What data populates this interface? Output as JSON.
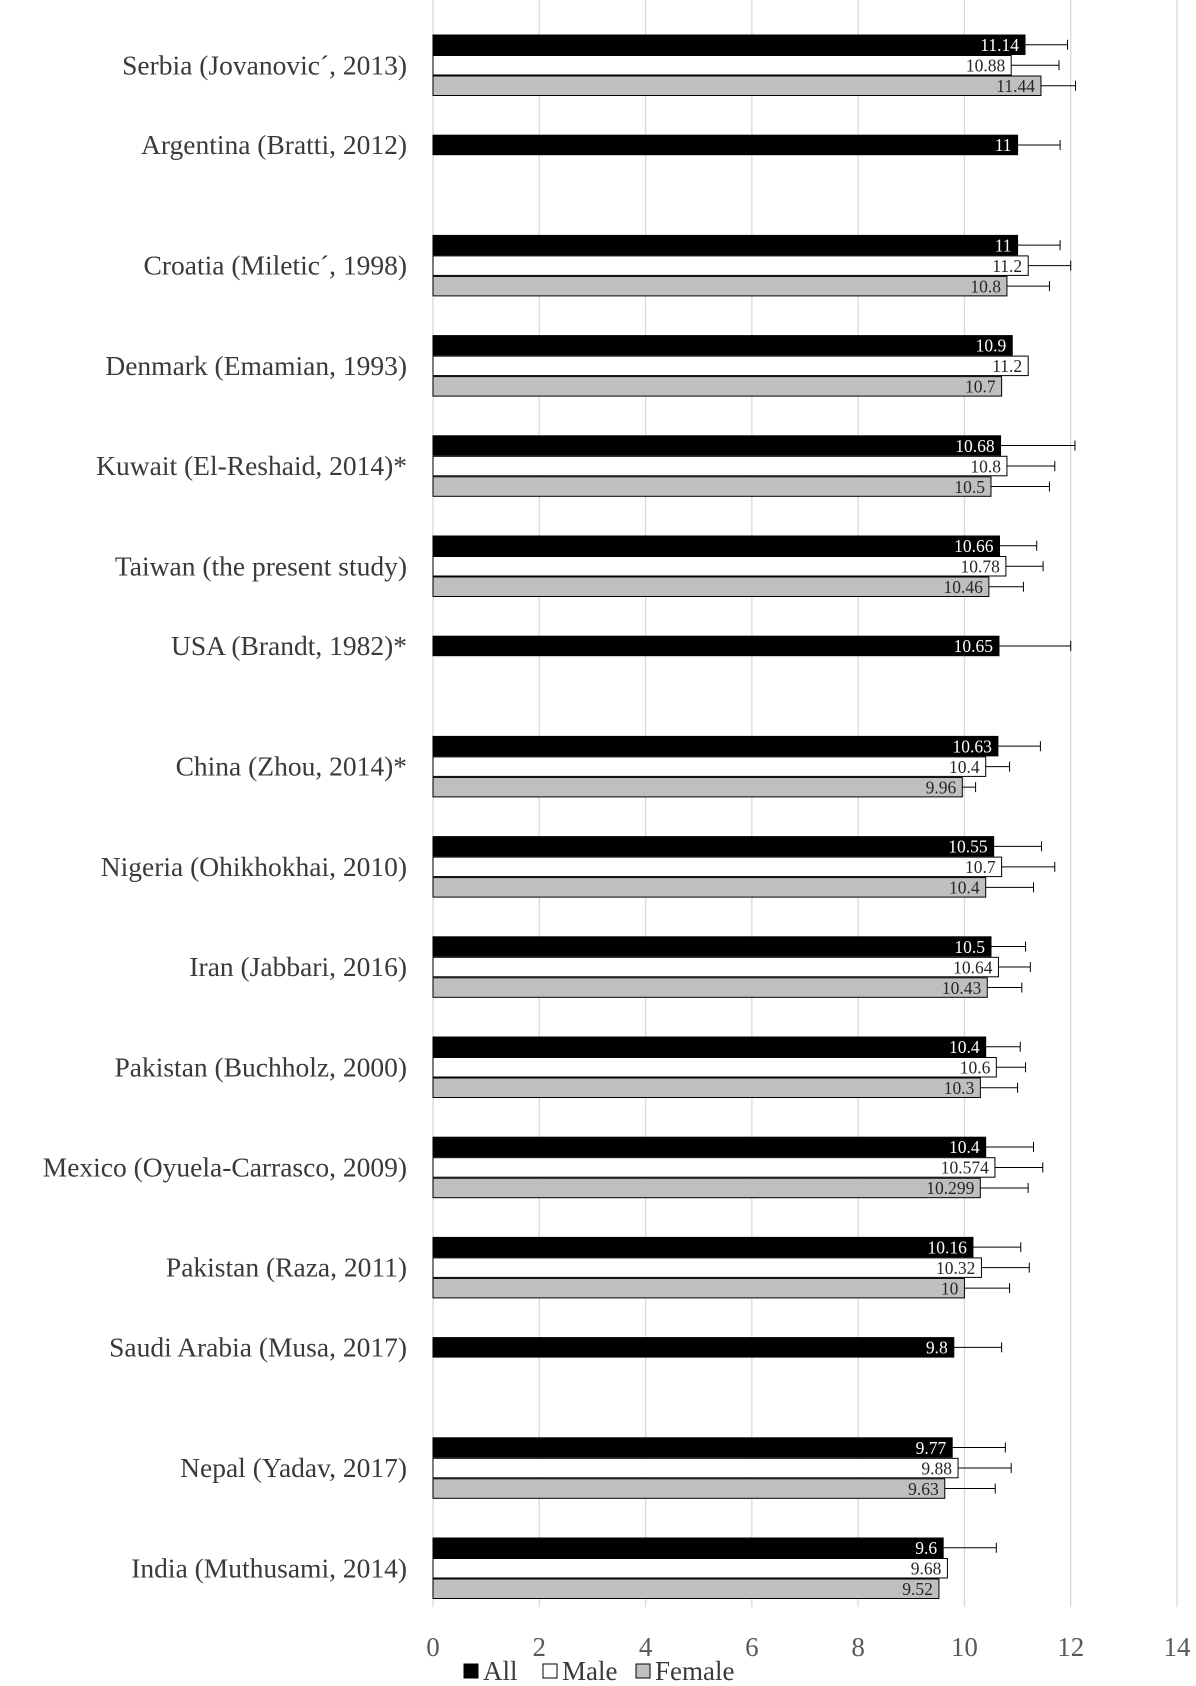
{
  "chart_data": {
    "type": "bar",
    "orientation": "horizontal",
    "categories": [
      "Serbia (Jovanovic´, 2013)",
      "Argentina (Bratti, 2012)",
      "Croatia (Miletic´, 1998)",
      "Denmark (Emamian, 1993)",
      "Kuwait (El-Reshaid, 2014)*",
      "Taiwan (the present study)",
      "USA (Brandt, 1982)*",
      "China (Zhou, 2014)*",
      "Nigeria (Ohikhokhai, 2010)",
      "Iran (Jabbari, 2016)",
      "Pakistan (Buchholz, 2000)",
      "Mexico (Oyuela-Carrasco, 2009)",
      "Pakistan (Raza, 2011)",
      "Saudi Arabia (Musa, 2017)",
      "Nepal (Yadav, 2017)",
      "India (Muthusami, 2014)"
    ],
    "series": [
      {
        "name": "All",
        "color": "#000000",
        "values": [
          11.14,
          11,
          11,
          10.9,
          10.68,
          10.66,
          10.65,
          10.63,
          10.55,
          10.5,
          10.4,
          10.4,
          10.16,
          9.8,
          9.77,
          9.6
        ],
        "labels": [
          "11.14",
          "11",
          "11",
          "10.9",
          "10.68",
          "10.66",
          "10.65",
          "10.63",
          "10.55",
          "10.5",
          "10.4",
          "10.4",
          "10.16",
          "9.8",
          "9.77",
          "9.6"
        ],
        "errors": [
          0.8,
          0.8,
          0.8,
          null,
          1.4,
          0.7,
          1.35,
          0.8,
          0.9,
          0.65,
          0.65,
          0.9,
          0.9,
          0.9,
          1.0,
          1.0
        ]
      },
      {
        "name": "Male",
        "color": "#ffffff",
        "values": [
          10.88,
          null,
          11.2,
          11.2,
          10.8,
          10.78,
          null,
          10.4,
          10.7,
          10.64,
          10.6,
          10.574,
          10.32,
          null,
          9.88,
          9.68
        ],
        "labels": [
          "10.88",
          null,
          "11.2",
          "11.2",
          "10.8",
          "10.78",
          null,
          "10.4",
          "10.7",
          "10.64",
          "10.6",
          "10.574",
          "10.32",
          null,
          "9.88",
          "9.68"
        ],
        "errors": [
          0.9,
          null,
          0.8,
          null,
          0.9,
          0.7,
          null,
          0.45,
          1.0,
          0.6,
          0.55,
          0.9,
          0.9,
          null,
          1.0,
          null
        ]
      },
      {
        "name": "Female",
        "color": "#bfbfbf",
        "values": [
          11.44,
          null,
          10.8,
          10.7,
          10.5,
          10.46,
          null,
          9.96,
          10.4,
          10.43,
          10.3,
          10.299,
          10,
          null,
          9.63,
          9.52
        ],
        "labels": [
          "11.44",
          null,
          "10.8",
          "10.7",
          "10.5",
          "10.46",
          null,
          "9.96",
          "10.4",
          "10.43",
          "10.3",
          "10.299",
          "10",
          null,
          "9.63",
          "9.52"
        ],
        "errors": [
          0.65,
          null,
          0.8,
          null,
          1.1,
          0.65,
          null,
          0.25,
          0.9,
          0.65,
          0.7,
          0.9,
          0.85,
          null,
          0.95,
          null
        ]
      }
    ],
    "xlim": [
      0,
      14
    ],
    "xticks": [
      0,
      2,
      4,
      6,
      8,
      10,
      12,
      14
    ],
    "grid": "vertical",
    "legend": "bottom",
    "title": "",
    "xlabel": "",
    "ylabel": ""
  }
}
